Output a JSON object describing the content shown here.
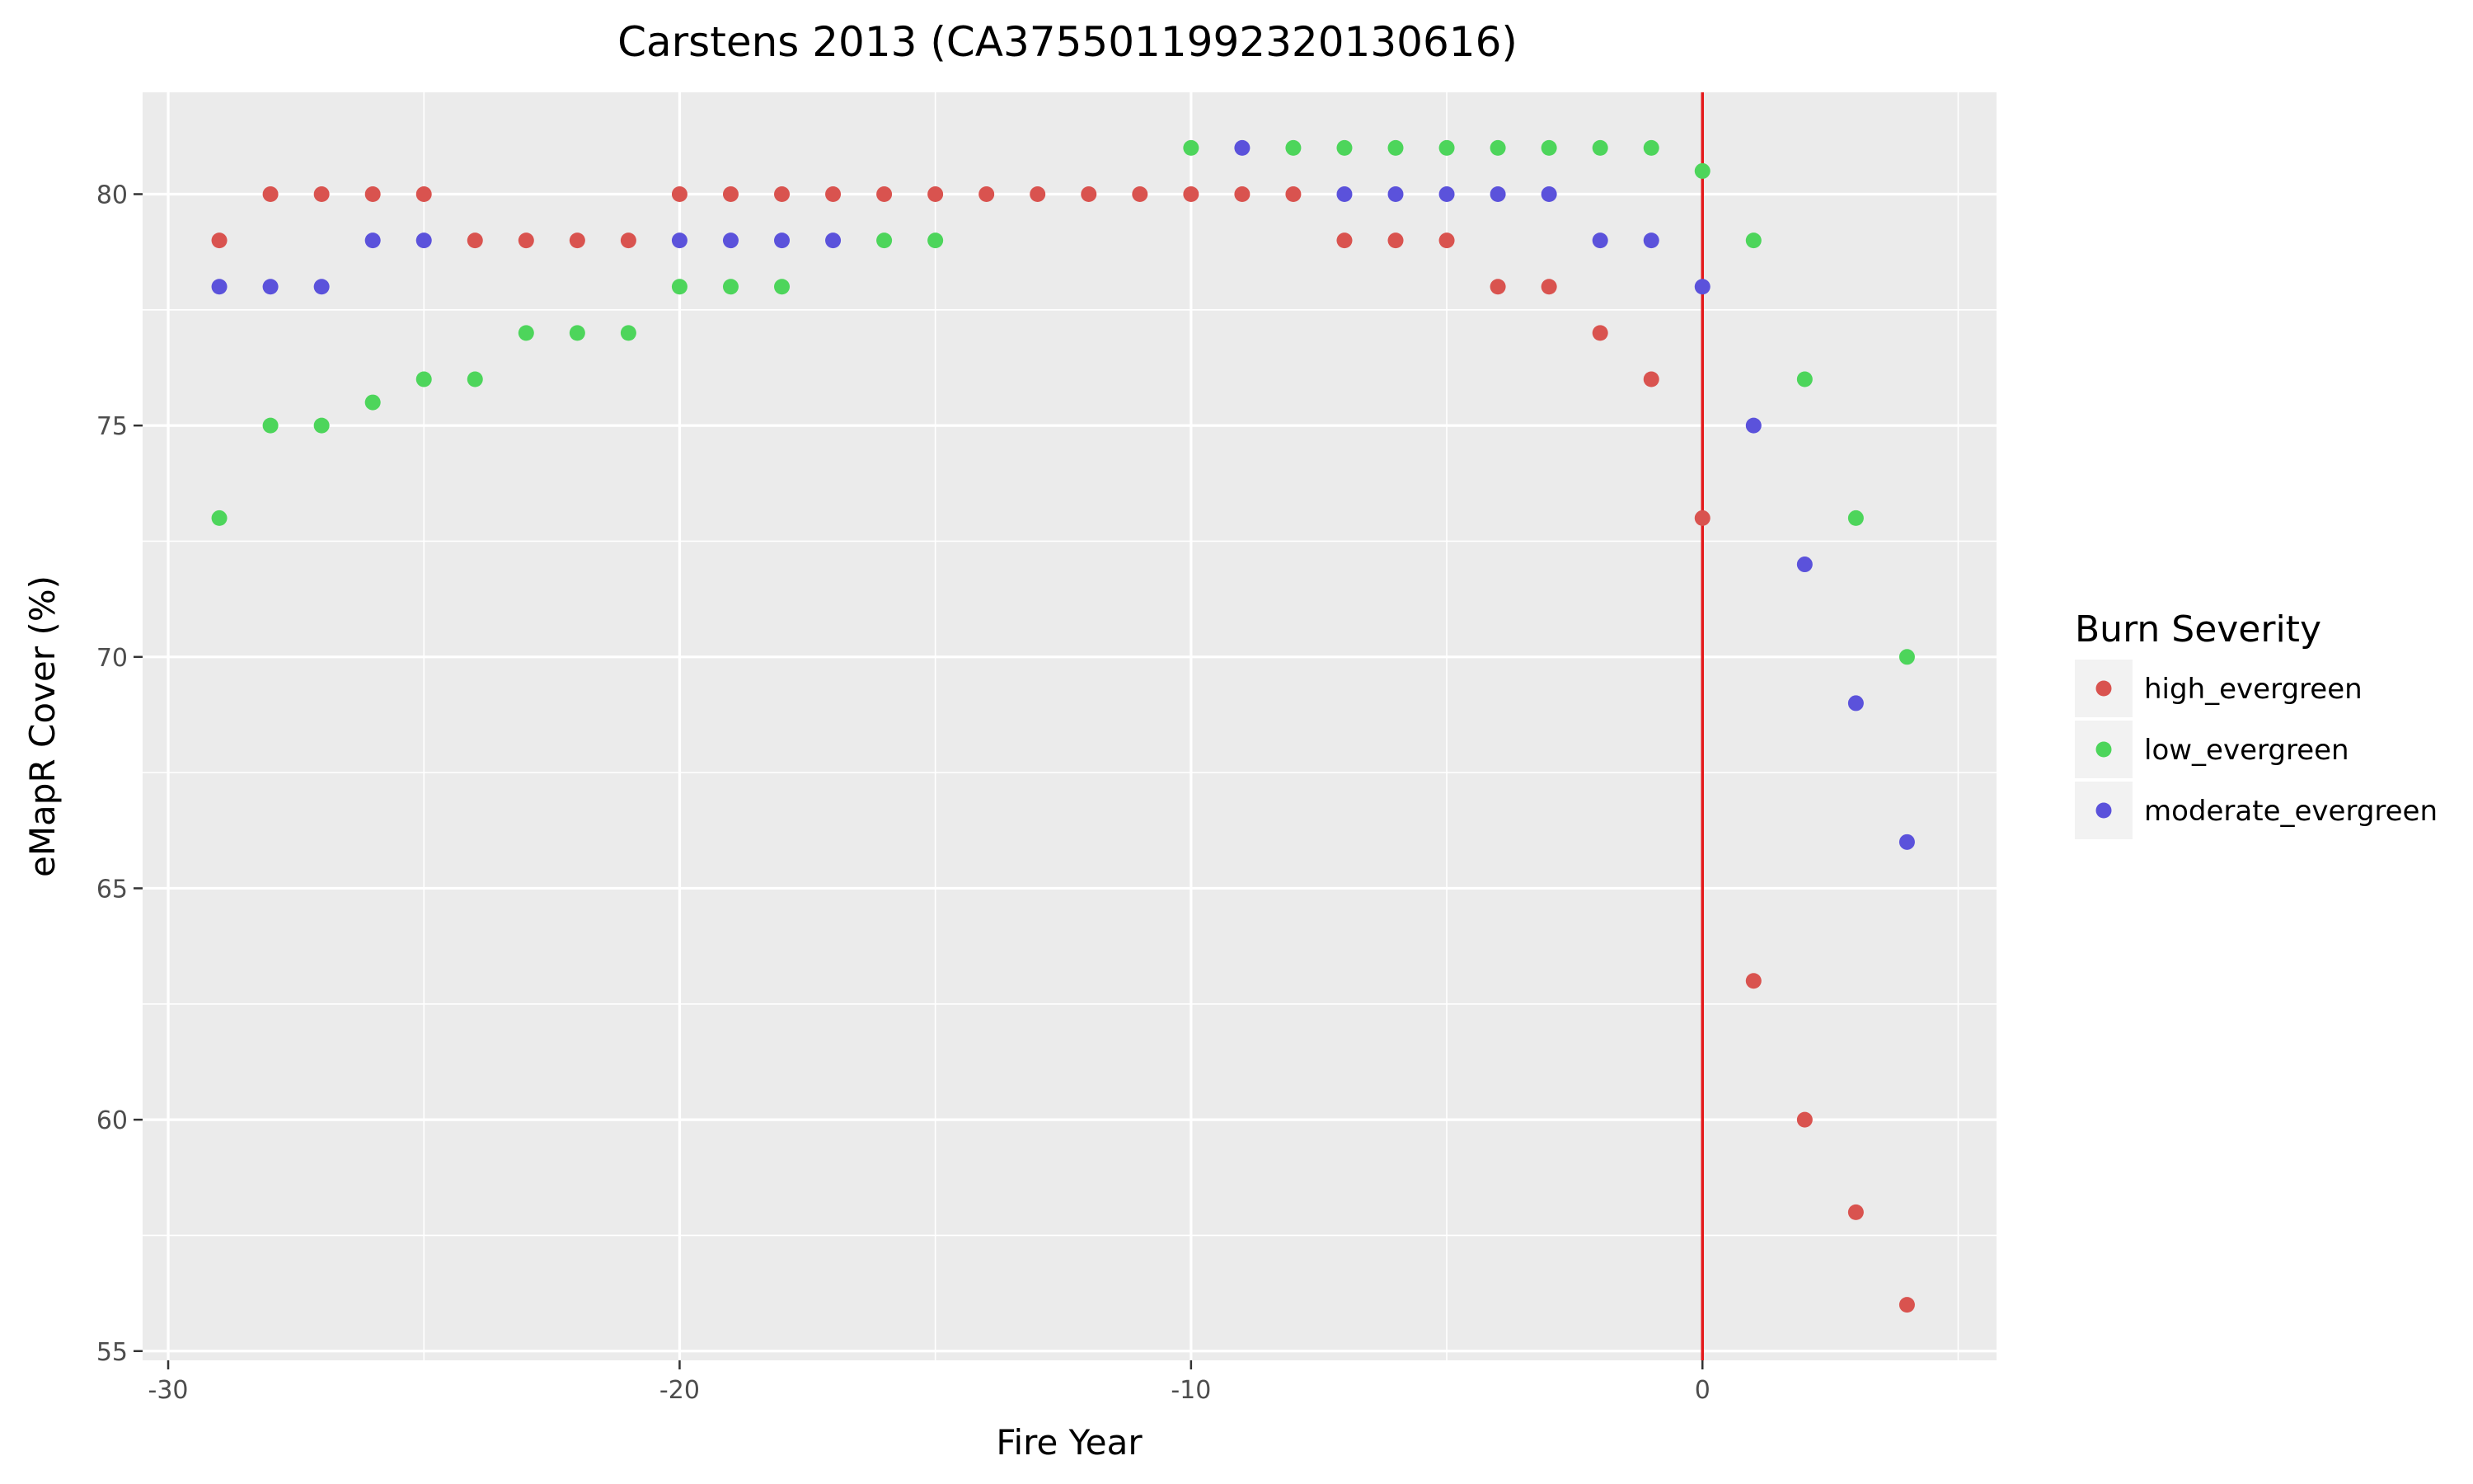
{
  "chart_data": {
    "type": "scatter",
    "title": "Carstens 2013 (CA3755011992320130616)",
    "xlabel": "Fire Year",
    "ylabel": "eMapR Cover (%)",
    "xlim": [
      -30.5,
      5.75
    ],
    "ylim": [
      54.8,
      82.2
    ],
    "xticks": [
      -30,
      -20,
      -10,
      0
    ],
    "xtick_labels": [
      "-30",
      "-20",
      "-10",
      "0"
    ],
    "yticks": [
      55,
      60,
      65,
      70,
      75,
      80
    ],
    "ytick_labels": [
      "55",
      "60",
      "65",
      "70",
      "75",
      "80"
    ],
    "grid": true,
    "background": "#EBEBEB",
    "reference_line": {
      "x": 0,
      "color": "#E41A1C"
    },
    "legend": {
      "title": "Burn Severity",
      "position": "right"
    },
    "series": [
      {
        "name": "high_evergreen",
        "color": "#D9534F",
        "x": [
          -29,
          -28,
          -27,
          -26,
          -25,
          -24,
          -23,
          -22,
          -21,
          -20,
          -19,
          -18,
          -17,
          -16,
          -15,
          -14,
          -13,
          -12,
          -11,
          -10,
          -9,
          -8,
          -7,
          -6,
          -5,
          -4,
          -3,
          -2,
          -1,
          0,
          1,
          2,
          3,
          4
        ],
        "y": [
          79,
          80,
          80,
          80,
          80,
          79,
          79,
          79,
          79,
          80,
          80,
          80,
          80,
          80,
          80,
          80,
          80,
          80,
          80,
          80,
          80,
          80,
          79,
          79,
          79,
          78,
          78,
          77,
          76,
          73,
          63,
          60,
          58,
          56
        ]
      },
      {
        "name": "low_evergreen",
        "color": "#4DD55B",
        "x": [
          -29,
          -28,
          -27,
          -26,
          -25,
          -24,
          -23,
          -22,
          -21,
          -20,
          -19,
          -18,
          -16,
          -15,
          -10,
          -8,
          -7,
          -6,
          -5,
          -4,
          -3,
          -2,
          -1,
          0,
          1,
          2,
          3,
          4
        ],
        "y": [
          73,
          75,
          75,
          75.5,
          76,
          76,
          77,
          77,
          77,
          78,
          78,
          78,
          79,
          79,
          81,
          81,
          81,
          81,
          81,
          81,
          81,
          81,
          81,
          80.5,
          79,
          76,
          73,
          70
        ]
      },
      {
        "name": "moderate_evergreen",
        "color": "#5B52DB",
        "x": [
          -29,
          -28,
          -27,
          -26,
          -25,
          -20,
          -19,
          -18,
          -17,
          -9,
          -7,
          -6,
          -5,
          -4,
          -3,
          -2,
          -1,
          0,
          1,
          2,
          3,
          4
        ],
        "y": [
          78,
          78,
          78,
          79,
          79,
          79,
          79,
          79,
          79,
          81,
          80,
          80,
          80,
          80,
          80,
          79,
          79,
          78,
          75,
          72,
          69,
          66
        ]
      }
    ]
  }
}
